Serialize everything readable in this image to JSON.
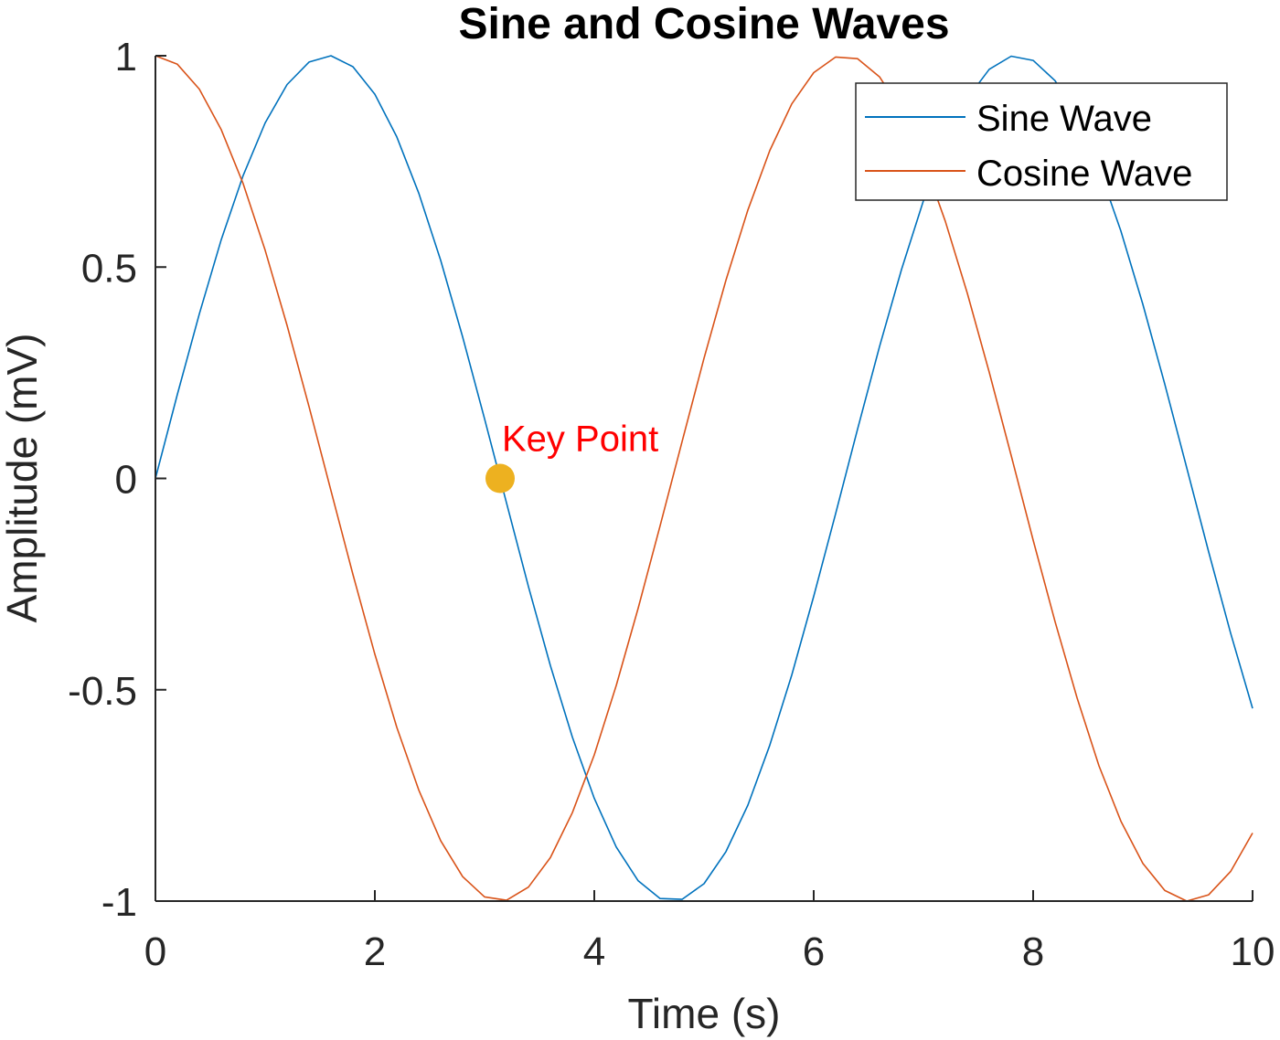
{
  "chart_data": {
    "type": "line",
    "title": "Sine and Cosine Waves",
    "xlabel": "Time (s)",
    "ylabel": "Amplitude (mV)",
    "xlim": [
      0,
      10
    ],
    "ylim": [
      -1,
      1
    ],
    "x_ticks": [
      0,
      2,
      4,
      6,
      8,
      10
    ],
    "x_tick_labels": [
      "0",
      "2",
      "4",
      "6",
      "8",
      "10"
    ],
    "y_ticks": [
      -1,
      -0.5,
      0,
      0.5,
      1
    ],
    "y_tick_labels": [
      "-1",
      "-0.5",
      "0",
      "0.5",
      "1"
    ],
    "grid": false,
    "legend_position": "top-right",
    "x": [
      0,
      0.2,
      0.4,
      0.6,
      0.8,
      1.0,
      1.2,
      1.4,
      1.6,
      1.8,
      2.0,
      2.2,
      2.4,
      2.6,
      2.8,
      3.0,
      3.2,
      3.4,
      3.6,
      3.8,
      4.0,
      4.2,
      4.4,
      4.6,
      4.8,
      5.0,
      5.2,
      5.4,
      5.6,
      5.8,
      6.0,
      6.2,
      6.4,
      6.6,
      6.8,
      7.0,
      7.2,
      7.4,
      7.6,
      7.8,
      8.0,
      8.2,
      8.4,
      8.6,
      8.8,
      9.0,
      9.2,
      9.4,
      9.6,
      9.8,
      10.0
    ],
    "series": [
      {
        "name": "Sine Wave",
        "color": "#0072BD",
        "values": [
          0,
          0.199,
          0.389,
          0.565,
          0.717,
          0.841,
          0.932,
          0.985,
          1.0,
          0.974,
          0.909,
          0.808,
          0.675,
          0.516,
          0.335,
          0.141,
          -0.058,
          -0.256,
          -0.443,
          -0.612,
          -0.757,
          -0.872,
          -0.952,
          -0.994,
          -0.996,
          -0.959,
          -0.883,
          -0.773,
          -0.631,
          -0.465,
          -0.279,
          -0.083,
          0.117,
          0.312,
          0.494,
          0.657,
          0.794,
          0.899,
          0.968,
          0.999,
          0.989,
          0.941,
          0.855,
          0.734,
          0.585,
          0.412,
          0.223,
          0.025,
          -0.174,
          -0.366,
          -0.544
        ]
      },
      {
        "name": "Cosine Wave",
        "color": "#D95319",
        "values": [
          1.0,
          0.98,
          0.921,
          0.825,
          0.697,
          0.54,
          0.362,
          0.17,
          -0.029,
          -0.227,
          -0.416,
          -0.589,
          -0.737,
          -0.857,
          -0.942,
          -0.99,
          -0.998,
          -0.967,
          -0.897,
          -0.791,
          -0.654,
          -0.49,
          -0.307,
          -0.112,
          0.087,
          0.284,
          0.469,
          0.635,
          0.776,
          0.886,
          0.96,
          0.997,
          0.993,
          0.95,
          0.869,
          0.754,
          0.608,
          0.438,
          0.251,
          0.054,
          -0.146,
          -0.339,
          -0.519,
          -0.68,
          -0.811,
          -0.911,
          -0.975,
          -1.0,
          -0.985,
          -0.93,
          -0.839
        ]
      }
    ],
    "annotations": [
      {
        "text": "Key Point",
        "x": 3.1416,
        "y": 0,
        "marker_color": "#EDB120",
        "text_color": "#FF0000"
      }
    ]
  }
}
